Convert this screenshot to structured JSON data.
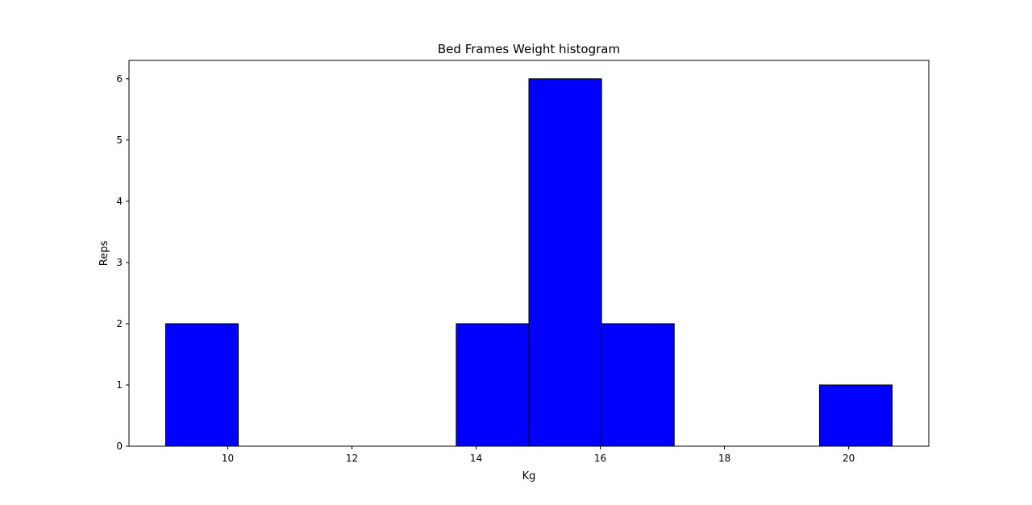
{
  "chart_data": {
    "type": "bar",
    "title": "Bed Frames Weight histogram",
    "xlabel": "Kg",
    "ylabel": "Reps",
    "xlim": [
      8.41,
      21.29
    ],
    "ylim": [
      0,
      6.3
    ],
    "xticks": [
      10,
      12,
      14,
      16,
      18,
      20
    ],
    "yticks": [
      0,
      1,
      2,
      3,
      4,
      5,
      6
    ],
    "bins": [
      {
        "x0": 9.0,
        "x1": 10.17,
        "count": 2
      },
      {
        "x0": 10.17,
        "x1": 11.34,
        "count": 0
      },
      {
        "x0": 11.34,
        "x1": 12.51,
        "count": 0
      },
      {
        "x0": 12.51,
        "x1": 13.68,
        "count": 0
      },
      {
        "x0": 13.68,
        "x1": 14.85,
        "count": 2
      },
      {
        "x0": 14.85,
        "x1": 16.02,
        "count": 6
      },
      {
        "x0": 16.02,
        "x1": 17.19,
        "count": 2
      },
      {
        "x0": 17.19,
        "x1": 18.36,
        "count": 0
      },
      {
        "x0": 18.36,
        "x1": 19.53,
        "count": 0
      },
      {
        "x0": 19.53,
        "x1": 20.7,
        "count": 1
      }
    ],
    "bar_color": "#0000ff",
    "edge_color": "#000000",
    "grid": false,
    "legend": "none"
  }
}
